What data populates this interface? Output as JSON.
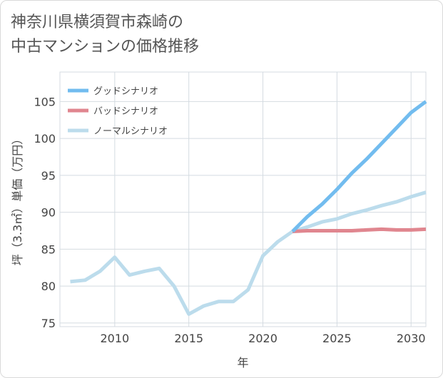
{
  "title_line1": "神奈川県横須賀市森崎の",
  "title_line2": "中古マンションの価格推移",
  "chart_data": {
    "type": "line",
    "title": "神奈川県横須賀市森崎の中古マンションの価格推移",
    "xlabel": "年",
    "ylabel": "坪（3.3㎡）単価（万円）",
    "xlim": [
      2006.3,
      2031
    ],
    "ylim": [
      74.5,
      109
    ],
    "x_ticks": [
      "2010",
      "2015",
      "2020",
      "2025",
      "2030"
    ],
    "y_ticks": [
      "75",
      "80",
      "85",
      "90",
      "95",
      "100",
      "105"
    ],
    "grid": true,
    "legend_position": "top-left",
    "series": [
      {
        "name": "ノーマルシナリオ",
        "color": "#bcdcec",
        "points": [
          [
            2007,
            80.6
          ],
          [
            2008,
            80.8
          ],
          [
            2009,
            82.0
          ],
          [
            2010,
            83.9
          ],
          [
            2011,
            81.5
          ],
          [
            2012,
            82.0
          ],
          [
            2013,
            82.4
          ],
          [
            2014,
            80.0
          ],
          [
            2015,
            76.2
          ],
          [
            2016,
            77.3
          ],
          [
            2017,
            77.9
          ],
          [
            2018,
            77.9
          ],
          [
            2019,
            79.5
          ],
          [
            2020,
            84.1
          ],
          [
            2021,
            86.0
          ],
          [
            2022,
            87.4
          ],
          [
            2023,
            88.0
          ],
          [
            2024,
            88.7
          ],
          [
            2025,
            89.1
          ],
          [
            2026,
            89.8
          ],
          [
            2027,
            90.3
          ],
          [
            2028,
            90.9
          ],
          [
            2029,
            91.4
          ],
          [
            2030,
            92.1
          ],
          [
            2031,
            92.7
          ]
        ]
      },
      {
        "name": "グッドシナリオ",
        "color": "#72bcef",
        "points": [
          [
            2022,
            87.4
          ],
          [
            2023,
            89.4
          ],
          [
            2024,
            91.1
          ],
          [
            2025,
            93.1
          ],
          [
            2026,
            95.3
          ],
          [
            2027,
            97.2
          ],
          [
            2028,
            99.3
          ],
          [
            2029,
            101.4
          ],
          [
            2030,
            103.5
          ],
          [
            2031,
            105.0
          ]
        ]
      },
      {
        "name": "バッドシナリオ",
        "color": "#e0868f",
        "points": [
          [
            2022,
            87.4
          ],
          [
            2023,
            87.5
          ],
          [
            2024,
            87.5
          ],
          [
            2025,
            87.5
          ],
          [
            2026,
            87.5
          ],
          [
            2027,
            87.6
          ],
          [
            2028,
            87.7
          ],
          [
            2029,
            87.6
          ],
          [
            2030,
            87.6
          ],
          [
            2031,
            87.7
          ]
        ]
      }
    ],
    "legend": [
      "グッドシナリオ",
      "バッドシナリオ",
      "ノーマルシナリオ"
    ]
  }
}
